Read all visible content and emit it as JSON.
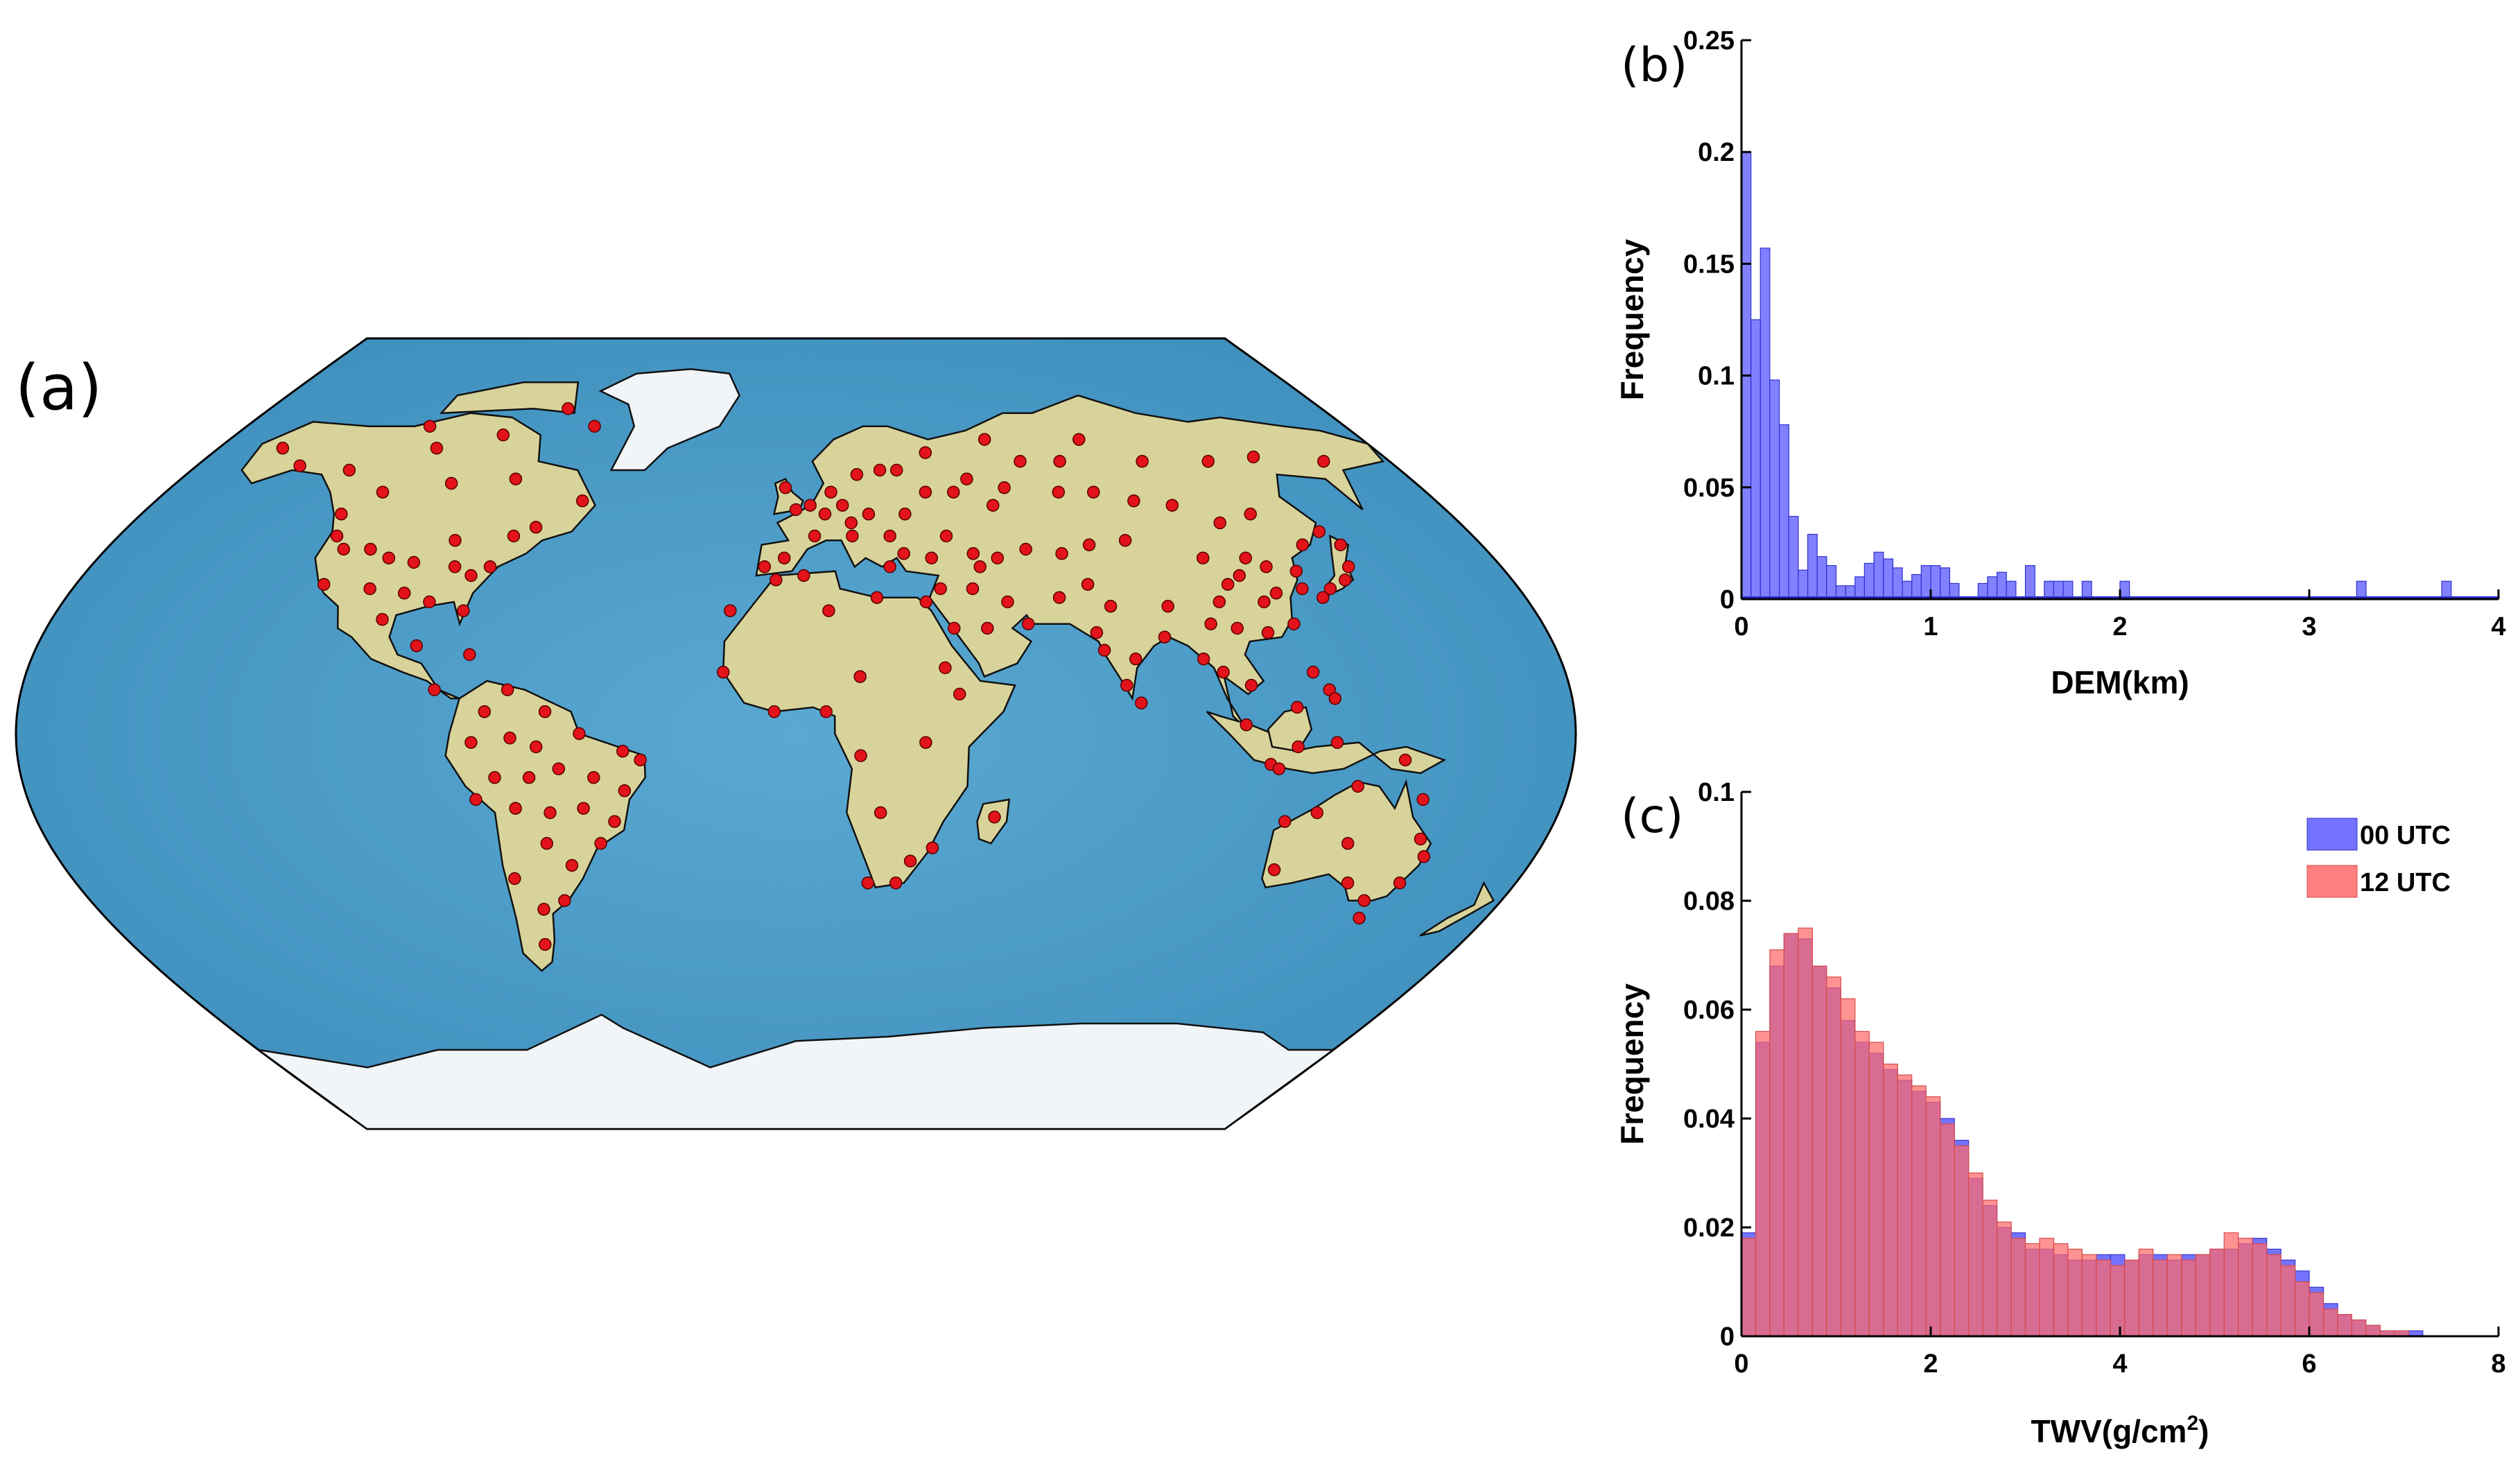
{
  "panels": {
    "a": "(a)",
    "b": "(b)",
    "c": "(c)"
  },
  "colors": {
    "ocean": "#4f9fc9",
    "land": "#d8d39a",
    "ice": "#f2f5f8",
    "station": "#e3131b",
    "blue_series": "#5a5aff",
    "red_series": "#ff6a6a"
  },
  "map": {
    "type": "scatter-map",
    "projection": "Robinson",
    "station_count_note": "",
    "stations": [
      [
        -160,
        65
      ],
      [
        -149,
        61
      ],
      [
        -120,
        70
      ],
      [
        -112,
        65
      ],
      [
        -94,
        68
      ],
      [
        -78,
        74
      ],
      [
        -66,
        70
      ],
      [
        -133,
        60
      ],
      [
        -118,
        55
      ],
      [
        -100,
        57
      ],
      [
        -82,
        58
      ],
      [
        -75,
        45
      ],
      [
        -70,
        47
      ],
      [
        -60,
        53
      ],
      [
        -125,
        50
      ],
      [
        -122,
        45
      ],
      [
        -118,
        42
      ],
      [
        -111,
        42
      ],
      [
        -105,
        40
      ],
      [
        -98,
        39
      ],
      [
        -90,
        44
      ],
      [
        -87,
        38
      ],
      [
        -82,
        36
      ],
      [
        -78,
        38
      ],
      [
        -118,
        34
      ],
      [
        -106,
        33
      ],
      [
        -97,
        32
      ],
      [
        -90,
        30
      ],
      [
        -81,
        28
      ],
      [
        -100,
        26
      ],
      [
        -90,
        20
      ],
      [
        -77,
        18
      ],
      [
        -84,
        10
      ],
      [
        -72,
        5
      ],
      [
        -67,
        10
      ],
      [
        -58,
        5
      ],
      [
        -75,
        -2
      ],
      [
        -66,
        -1
      ],
      [
        -60,
        -3
      ],
      [
        -50,
        0
      ],
      [
        -40,
        -4
      ],
      [
        -36,
        -6
      ],
      [
        -70,
        -10
      ],
      [
        -62,
        -10
      ],
      [
        -55,
        -8
      ],
      [
        -47,
        -10
      ],
      [
        -40,
        -13
      ],
      [
        -75,
        -15
      ],
      [
        -66,
        -17
      ],
      [
        -58,
        -18
      ],
      [
        -50,
        -17
      ],
      [
        -43,
        -20
      ],
      [
        -47,
        -25
      ],
      [
        -60,
        -25
      ],
      [
        -55,
        -30
      ],
      [
        -70,
        -33
      ],
      [
        -65,
        -40
      ],
      [
        -59,
        -38
      ],
      [
        -68,
        -48
      ],
      [
        -16,
        28
      ],
      [
        -5,
        35
      ],
      [
        -17,
        14
      ],
      [
        2,
        36
      ],
      [
        8,
        28
      ],
      [
        15,
        13
      ],
      [
        20,
        31
      ],
      [
        32,
        30
      ],
      [
        35,
        15
      ],
      [
        38,
        9
      ],
      [
        30,
        -2
      ],
      [
        -5,
        5
      ],
      [
        7,
        5
      ],
      [
        15,
        -5
      ],
      [
        20,
        -18
      ],
      [
        33,
        -26
      ],
      [
        28,
        -29
      ],
      [
        25,
        -34
      ],
      [
        18,
        -34
      ],
      [
        47,
        -19
      ],
      [
        -3,
        56
      ],
      [
        0,
        51
      ],
      [
        4,
        52
      ],
      [
        8,
        50
      ],
      [
        10,
        55
      ],
      [
        13,
        52
      ],
      [
        18,
        59
      ],
      [
        25,
        60
      ],
      [
        30,
        60
      ],
      [
        15,
        48
      ],
      [
        20,
        50
      ],
      [
        25,
        45
      ],
      [
        30,
        50
      ],
      [
        37,
        55
      ],
      [
        45,
        55
      ],
      [
        50,
        58
      ],
      [
        55,
        52
      ],
      [
        60,
        56
      ],
      [
        68,
        62
      ],
      [
        80,
        62
      ],
      [
        90,
        67
      ],
      [
        105,
        62
      ],
      [
        125,
        62
      ],
      [
        140,
        63
      ],
      [
        160,
        62
      ],
      [
        40,
        64
      ],
      [
        60,
        67
      ],
      [
        75,
        55
      ],
      [
        85,
        55
      ],
      [
        95,
        53
      ],
      [
        105,
        52
      ],
      [
        115,
        48
      ],
      [
        125,
        50
      ],
      [
        133,
        43
      ],
      [
        140,
        46
      ],
      [
        143,
        43
      ],
      [
        141,
        38
      ],
      [
        138,
        35
      ],
      [
        133,
        33
      ],
      [
        130,
        31
      ],
      [
        127,
        37
      ],
      [
        126,
        33
      ],
      [
        120,
        38
      ],
      [
        116,
        40
      ],
      [
        112,
        36
      ],
      [
        108,
        34
      ],
      [
        104,
        30
      ],
      [
        115,
        30
      ],
      [
        119,
        32
      ],
      [
        113,
        23
      ],
      [
        120,
        25
      ],
      [
        106,
        24
      ],
      [
        100,
        25
      ],
      [
        91,
        29
      ],
      [
        87,
        44
      ],
      [
        77,
        43
      ],
      [
        69,
        41
      ],
      [
        60,
        42
      ],
      [
        52,
        40
      ],
      [
        46,
        41
      ],
      [
        44,
        33
      ],
      [
        36,
        33
      ],
      [
        38,
        24
      ],
      [
        46,
        24
      ],
      [
        52,
        30
      ],
      [
        56,
        25
      ],
      [
        65,
        31
      ],
      [
        73,
        34
      ],
      [
        77,
        29
      ],
      [
        72,
        23
      ],
      [
        80,
        17
      ],
      [
        73,
        19
      ],
      [
        77,
        11
      ],
      [
        80,
        7
      ],
      [
        88,
        22
      ],
      [
        96,
        17
      ],
      [
        100,
        14
      ],
      [
        106,
        11
      ],
      [
        104,
        2
      ],
      [
        116,
        6
      ],
      [
        121,
        14
      ],
      [
        124,
        10
      ],
      [
        125,
        8
      ],
      [
        110,
        -7
      ],
      [
        116,
        -3
      ],
      [
        112,
        -8
      ],
      [
        125,
        -2
      ],
      [
        141,
        -6
      ],
      [
        131,
        -12
      ],
      [
        147,
        -15
      ],
      [
        116,
        -20
      ],
      [
        123,
        -18
      ],
      [
        133,
        -25
      ],
      [
        118,
        -31
      ],
      [
        150,
        -24
      ],
      [
        153,
        -28
      ],
      [
        138,
        -34
      ],
      [
        145,
        -38
      ],
      [
        151,
        -34
      ],
      [
        147,
        -42
      ],
      [
        15,
        45
      ],
      [
        -8,
        38
      ],
      [
        -3,
        40
      ],
      [
        5,
        45
      ],
      [
        24,
        38
      ],
      [
        28,
        41
      ],
      [
        35,
        40
      ],
      [
        40,
        45
      ],
      [
        47,
        38
      ],
      [
        105,
        40
      ]
    ]
  },
  "chart_data": [
    {
      "type": "bar",
      "panel": "b",
      "title": "",
      "xlabel": "DEM(km)",
      "ylabel": "Frequency",
      "xlim": [
        0,
        4
      ],
      "ylim": [
        0,
        0.25
      ],
      "xticks": [
        0,
        1,
        2,
        3,
        4
      ],
      "yticks": [
        0,
        0.05,
        0.1,
        0.15,
        0.2,
        0.25
      ],
      "ytick_labels": [
        "0",
        "0.05",
        "0.1",
        "0.15",
        "0.2",
        "0.25"
      ],
      "bin_width": 0.05,
      "bin_starts": [
        0,
        0.05,
        0.1,
        0.15,
        0.2,
        0.25,
        0.3,
        0.35,
        0.4,
        0.45,
        0.5,
        0.55,
        0.6,
        0.65,
        0.7,
        0.75,
        0.8,
        0.85,
        0.9,
        0.95,
        1.0,
        1.05,
        1.1,
        1.15,
        1.2,
        1.25,
        1.3,
        1.35,
        1.4,
        1.45,
        1.5,
        1.55,
        1.6,
        1.65,
        1.7,
        1.75,
        1.8,
        1.85,
        1.9,
        1.95,
        2.0,
        2.05,
        3.25,
        3.7
      ],
      "values": [
        0.2,
        0.125,
        0.157,
        0.098,
        0.078,
        0.037,
        0.013,
        0.029,
        0.019,
        0.015,
        0.006,
        0.006,
        0.01,
        0.016,
        0.021,
        0.018,
        0.014,
        0.008,
        0.011,
        0.015,
        0.015,
        0.014,
        0.007,
        0.0,
        0.0,
        0.007,
        0.01,
        0.012,
        0.008,
        0.0,
        0.015,
        0.0,
        0.008,
        0.008,
        0.008,
        0.0,
        0.008,
        0.0,
        0.0,
        0.0,
        0.008,
        0.0,
        0.008,
        0.008
      ],
      "color": "#6b6bff"
    },
    {
      "type": "bar",
      "panel": "c",
      "title": "",
      "xlabel": "TWV(g/cm",
      "xlabel_sup": "2",
      "xlabel_end": ")",
      "ylabel": "Frequency",
      "xlim": [
        0,
        8
      ],
      "ylim": [
        0,
        0.1
      ],
      "xticks": [
        0,
        2,
        4,
        6,
        8
      ],
      "yticks": [
        0,
        0.02,
        0.04,
        0.06,
        0.08,
        0.1
      ],
      "ytick_labels": [
        "0",
        "0.02",
        "0.04",
        "0.06",
        "0.08",
        "0.1"
      ],
      "bin_width": 0.15,
      "series": [
        {
          "name": "00 UTC",
          "color": "#5a5aff",
          "values": [
            0.019,
            0.054,
            0.068,
            0.074,
            0.073,
            0.068,
            0.064,
            0.058,
            0.054,
            0.052,
            0.049,
            0.047,
            0.045,
            0.043,
            0.04,
            0.036,
            0.029,
            0.024,
            0.02,
            0.019,
            0.016,
            0.016,
            0.015,
            0.014,
            0.014,
            0.015,
            0.015,
            0.014,
            0.015,
            0.015,
            0.014,
            0.015,
            0.015,
            0.016,
            0.016,
            0.017,
            0.018,
            0.016,
            0.014,
            0.012,
            0.009,
            0.006,
            0.004,
            0.003,
            0.002,
            0.001,
            0.001,
            0.001,
            0.0,
            0.0,
            0.0,
            0.0,
            0.0
          ]
        },
        {
          "name": "12 UTC",
          "color": "#ff6a6a",
          "values": [
            0.018,
            0.056,
            0.071,
            0.074,
            0.075,
            0.068,
            0.066,
            0.062,
            0.056,
            0.054,
            0.05,
            0.048,
            0.046,
            0.044,
            0.039,
            0.035,
            0.03,
            0.025,
            0.021,
            0.018,
            0.017,
            0.018,
            0.017,
            0.016,
            0.015,
            0.014,
            0.013,
            0.014,
            0.016,
            0.014,
            0.015,
            0.014,
            0.015,
            0.016,
            0.019,
            0.018,
            0.017,
            0.015,
            0.013,
            0.01,
            0.008,
            0.005,
            0.004,
            0.003,
            0.002,
            0.001,
            0.001,
            0.0,
            0.0,
            0.0,
            0.0,
            0.0,
            0.0
          ]
        }
      ],
      "legend_position": "top-right"
    }
  ]
}
